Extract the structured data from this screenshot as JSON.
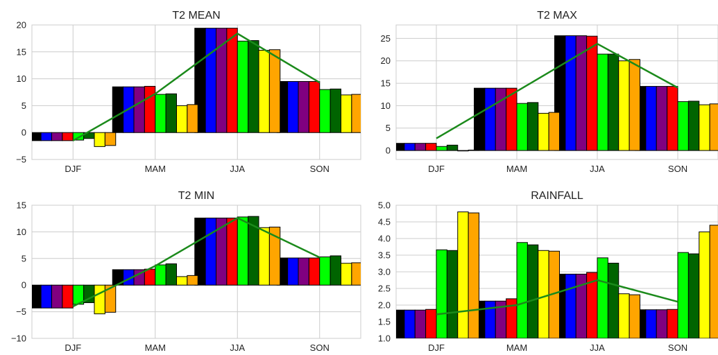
{
  "colors": {
    "background": "#ffffff",
    "grid": "#cccccc",
    "trend_line": "#1b8a1b",
    "bar_series": [
      "#000000",
      "#0000ff",
      "#800080",
      "#ff0000",
      "#00ff00",
      "#006400",
      "#ffff00",
      "#ffa500"
    ]
  },
  "chart_data": [
    {
      "type": "bar",
      "title": "T2 MEAN",
      "categories": [
        "DJF",
        "MAM",
        "JJA",
        "SON"
      ],
      "ylim": [
        -5,
        20
      ],
      "yticks": [
        -5,
        0,
        5,
        10,
        15,
        20
      ],
      "ytick_labels": [
        "−5",
        "0",
        "5",
        "10",
        "15",
        "20"
      ],
      "grid": true,
      "series": [
        {
          "color": "#000000",
          "values": [
            -1.5,
            8.5,
            19.4,
            9.5
          ]
        },
        {
          "color": "#0000ff",
          "values": [
            -1.5,
            8.5,
            19.4,
            9.5
          ]
        },
        {
          "color": "#800080",
          "values": [
            -1.5,
            8.5,
            19.4,
            9.5
          ]
        },
        {
          "color": "#ff0000",
          "values": [
            -1.5,
            8.6,
            19.4,
            9.5
          ]
        },
        {
          "color": "#00ff00",
          "values": [
            -1.4,
            7.1,
            17.0,
            8.0
          ]
        },
        {
          "color": "#006400",
          "values": [
            -1.1,
            7.2,
            17.1,
            8.1
          ]
        },
        {
          "color": "#ffff00",
          "values": [
            -2.6,
            5.0,
            15.3,
            7.0
          ]
        },
        {
          "color": "#ffa500",
          "values": [
            -2.4,
            5.2,
            15.4,
            7.1
          ]
        }
      ],
      "trend": {
        "color": "#1b8a1b",
        "values": [
          -1.5,
          7.2,
          18.4,
          9.3
        ]
      }
    },
    {
      "type": "bar",
      "title": "T2 MAX",
      "categories": [
        "DJF",
        "MAM",
        "JJA",
        "SON"
      ],
      "ylim": [
        -2,
        28
      ],
      "yticks": [
        0,
        5,
        10,
        15,
        20,
        25
      ],
      "ytick_labels": [
        "0",
        "5",
        "10",
        "15",
        "20",
        "25"
      ],
      "grid": true,
      "series": [
        {
          "color": "#000000",
          "values": [
            1.6,
            13.9,
            25.6,
            14.3
          ]
        },
        {
          "color": "#0000ff",
          "values": [
            1.6,
            13.9,
            25.6,
            14.3
          ]
        },
        {
          "color": "#800080",
          "values": [
            1.6,
            13.9,
            25.6,
            14.3
          ]
        },
        {
          "color": "#ff0000",
          "values": [
            1.6,
            13.9,
            25.5,
            14.3
          ]
        },
        {
          "color": "#00ff00",
          "values": [
            0.9,
            10.5,
            21.5,
            10.9
          ]
        },
        {
          "color": "#006400",
          "values": [
            1.2,
            10.7,
            21.5,
            11.0
          ]
        },
        {
          "color": "#ffff00",
          "values": [
            -0.1,
            8.3,
            20.0,
            10.2
          ]
        },
        {
          "color": "#ffa500",
          "values": [
            0.1,
            8.5,
            20.3,
            10.4
          ]
        }
      ],
      "trend": {
        "color": "#1b8a1b",
        "values": [
          2.7,
          13.2,
          23.8,
          14.0
        ]
      }
    },
    {
      "type": "bar",
      "title": "T2 MIN",
      "categories": [
        "DJF",
        "MAM",
        "JJA",
        "SON"
      ],
      "ylim": [
        -10,
        15
      ],
      "yticks": [
        -10,
        -5,
        0,
        5,
        10,
        15
      ],
      "ytick_labels": [
        "−10",
        "−5",
        "0",
        "5",
        "10",
        "15"
      ],
      "grid": true,
      "series": [
        {
          "color": "#000000",
          "values": [
            -4.3,
            2.9,
            12.6,
            5.1
          ]
        },
        {
          "color": "#0000ff",
          "values": [
            -4.3,
            2.9,
            12.6,
            5.1
          ]
        },
        {
          "color": "#800080",
          "values": [
            -4.3,
            2.9,
            12.6,
            5.1
          ]
        },
        {
          "color": "#ff0000",
          "values": [
            -4.3,
            3.0,
            12.6,
            5.1
          ]
        },
        {
          "color": "#00ff00",
          "values": [
            -3.6,
            3.8,
            12.8,
            5.3
          ]
        },
        {
          "color": "#006400",
          "values": [
            -3.3,
            4.0,
            12.9,
            5.5
          ]
        },
        {
          "color": "#ffff00",
          "values": [
            -5.4,
            1.6,
            10.8,
            4.1
          ]
        },
        {
          "color": "#ffa500",
          "values": [
            -5.1,
            1.8,
            10.9,
            4.2
          ]
        }
      ],
      "trend": {
        "color": "#1b8a1b",
        "values": [
          -4.0,
          3.6,
          12.6,
          5.2
        ]
      }
    },
    {
      "type": "bar",
      "title": "RAINFALL",
      "categories": [
        "DJF",
        "MAM",
        "JJA",
        "SON"
      ],
      "ylim": [
        1.0,
        5.0
      ],
      "yticks": [
        1.0,
        1.5,
        2.0,
        2.5,
        3.0,
        3.5,
        4.0,
        4.5,
        5.0
      ],
      "ytick_labels": [
        "1.0",
        "1.5",
        "2.0",
        "2.5",
        "3.0",
        "3.5",
        "4.0",
        "4.5",
        "5.0"
      ],
      "grid": true,
      "series": [
        {
          "color": "#000000",
          "values": [
            1.85,
            2.12,
            2.93,
            1.86
          ]
        },
        {
          "color": "#0000ff",
          "values": [
            1.85,
            2.12,
            2.93,
            1.86
          ]
        },
        {
          "color": "#800080",
          "values": [
            1.85,
            2.12,
            2.93,
            1.86
          ]
        },
        {
          "color": "#ff0000",
          "values": [
            1.87,
            2.19,
            2.98,
            1.87
          ]
        },
        {
          "color": "#00ff00",
          "values": [
            3.66,
            3.88,
            3.42,
            3.58
          ]
        },
        {
          "color": "#006400",
          "values": [
            3.64,
            3.81,
            3.26,
            3.54
          ]
        },
        {
          "color": "#ffff00",
          "values": [
            4.8,
            3.64,
            2.34,
            4.2
          ]
        },
        {
          "color": "#ffa500",
          "values": [
            4.77,
            3.62,
            2.31,
            4.4
          ]
        }
      ],
      "trend": {
        "color": "#1b8a1b",
        "values": [
          1.72,
          2.0,
          2.75,
          2.1
        ]
      }
    }
  ]
}
